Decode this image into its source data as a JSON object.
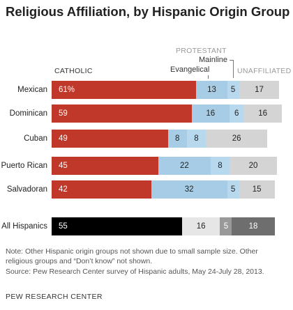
{
  "title": "Religious Affiliation, by Hispanic Origin Group",
  "headers": {
    "protestant": "PROTESTANT",
    "mainline": "Mainline",
    "evangelical": "Evangelical",
    "catholic": "CATHOLIC",
    "unaffiliated": "UNAFFILIATED"
  },
  "colors": {
    "catholic": "#c0382a",
    "evangelical": "#a7cde6",
    "mainline": "#b7d8ed",
    "unaffiliated": "#d4d4d4",
    "total_catholic": "#000000",
    "total_evangelical": "#e6e6e6",
    "total_mainline": "#999999",
    "total_unaffiliated": "#6e6e6e"
  },
  "chart_data": {
    "type": "bar",
    "orientation": "horizontal",
    "stacked": true,
    "categories": [
      "Mexican",
      "Dominican",
      "Cuban",
      "Puerto Rican",
      "Salvadoran",
      "All Hispanics"
    ],
    "series": [
      {
        "name": "CATHOLIC",
        "values": [
          61,
          59,
          49,
          45,
          42,
          55
        ],
        "labels": [
          "61%",
          "59",
          "49",
          "45",
          "42",
          "55"
        ]
      },
      {
        "name": "Evangelical",
        "values": [
          13,
          16,
          8,
          22,
          32,
          16
        ],
        "labels": [
          "13",
          "16",
          "8",
          "22",
          "32",
          "16"
        ]
      },
      {
        "name": "Mainline",
        "values": [
          5,
          6,
          8,
          8,
          5,
          5
        ],
        "labels": [
          "5",
          "6",
          "8",
          "8",
          "5",
          "5"
        ]
      },
      {
        "name": "UNAFFILIATED",
        "values": [
          17,
          16,
          26,
          20,
          15,
          18
        ],
        "labels": [
          "17",
          "16",
          "26",
          "20",
          "15",
          "18"
        ]
      }
    ],
    "group_label": "PROTESTANT",
    "xlim": [
      0,
      100
    ],
    "grid": false
  },
  "notes": {
    "line1": "Note: Other Hispanic origin groups not shown due to small sample size. Other",
    "line2": "religious groups and “Don’t know” not shown.",
    "source": "Source: Pew Research Center survey of Hispanic adults, May 24-July 28, 2013."
  },
  "footer": "PEW RESEARCH CENTER"
}
